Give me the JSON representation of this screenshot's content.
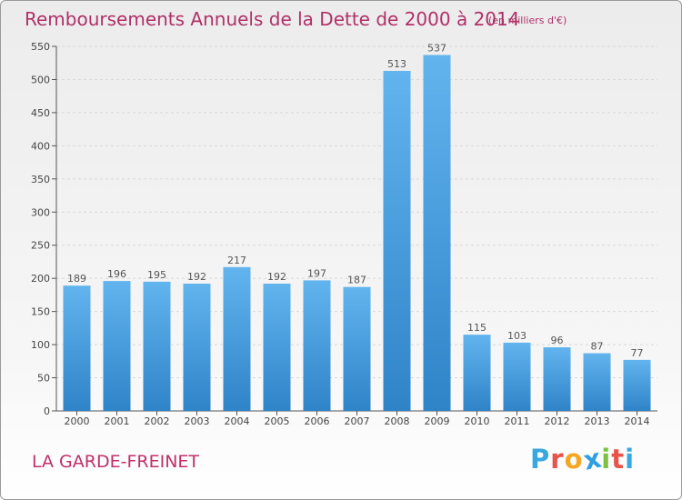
{
  "header": {
    "title": "Remboursements Annuels de la Dette de 2000 à 2014",
    "subtitle": "(en milliers d'€)"
  },
  "footer": {
    "city": "LA GARDE-FREINET",
    "brand_letters": [
      "P",
      "r",
      "o",
      "x",
      "i",
      "t",
      "i"
    ],
    "brand_colors": [
      "#3aa8e0",
      "#e8534a",
      "#f5a623",
      "#2f9fe0",
      "#7cc242",
      "#e8534a",
      "#3aa8e0"
    ]
  },
  "chart_data": {
    "type": "bar",
    "title": "Remboursements Annuels de la Dette de 2000 à 2014",
    "subtitle": "(en milliers d'€)",
    "xlabel": "",
    "ylabel": "",
    "categories": [
      "2000",
      "2001",
      "2002",
      "2003",
      "2004",
      "2005",
      "2006",
      "2007",
      "2008",
      "2009",
      "2010",
      "2011",
      "2012",
      "2013",
      "2014"
    ],
    "values": [
      189,
      196,
      195,
      192,
      217,
      192,
      197,
      187,
      513,
      537,
      115,
      103,
      96,
      87,
      77
    ],
    "ylim": [
      0,
      550
    ],
    "yticks": [
      0,
      50,
      100,
      150,
      200,
      250,
      300,
      350,
      400,
      450,
      500,
      550
    ],
    "grid": true,
    "bar_color_top": "#62b4ee",
    "bar_color_bottom": "#2f84c8",
    "label_color": "#555555"
  }
}
